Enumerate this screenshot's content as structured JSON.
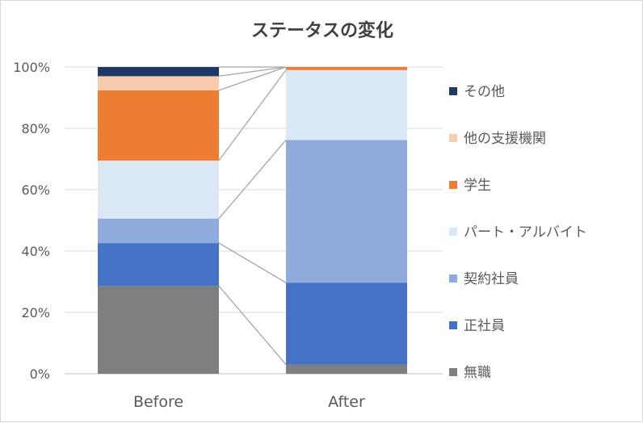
{
  "chart_data": {
    "type": "bar",
    "stacked": true,
    "percent_stacked": true,
    "title": "ステータスの変化",
    "categories": [
      "Before",
      "After"
    ],
    "ylim": [
      0,
      100
    ],
    "yticks": [
      "0%",
      "20%",
      "40%",
      "60%",
      "80%",
      "100%"
    ],
    "grid": true,
    "connector_lines": true,
    "legend_position": "right",
    "series": [
      {
        "name": "無職",
        "color": "#7f7f7f",
        "values": [
          28.6,
          3.0
        ]
      },
      {
        "name": "正社員",
        "color": "#4472c4",
        "values": [
          14.0,
          26.7
        ]
      },
      {
        "name": "契約社員",
        "color": "#8faadc",
        "values": [
          8.0,
          46.5
        ]
      },
      {
        "name": "パート・アルバイト",
        "color": "#dae8f6",
        "values": [
          18.9,
          22.8
        ]
      },
      {
        "name": "学生",
        "color": "#ed7d31",
        "values": [
          22.9,
          1.0
        ]
      },
      {
        "name": "他の支援機関",
        "color": "#f8cbad",
        "values": [
          4.6,
          0
        ]
      },
      {
        "name": "その他",
        "color": "#203864",
        "values": [
          3.0,
          0
        ]
      }
    ]
  }
}
